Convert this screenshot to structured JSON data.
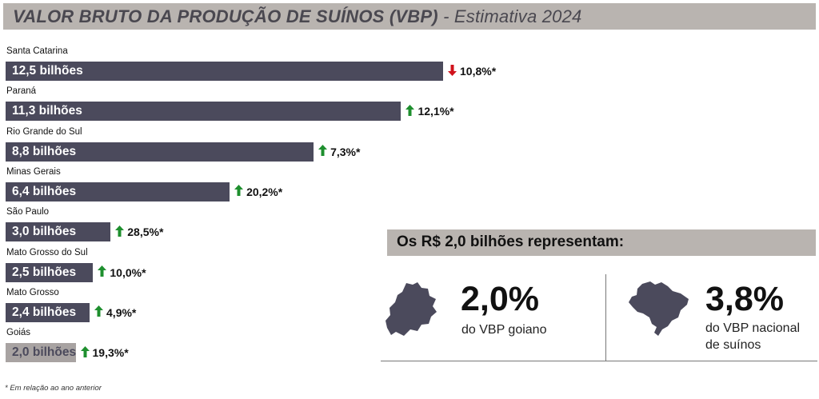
{
  "header": {
    "title": "VALOR BRUTO DA PRODUÇÃO DE SUÍNOS (VBP)",
    "subtitle": "- Estimativa 2024"
  },
  "chart_data": {
    "type": "bar",
    "orientation": "horizontal",
    "categories": [
      "Santa Catarina",
      "Paraná",
      "Rio Grande do Sul",
      "Minas Gerais",
      "São Paulo",
      "Mato Grosso do Sul",
      "Mato Grosso",
      "Goiás"
    ],
    "values": [
      12.5,
      11.3,
      8.8,
      6.4,
      3.0,
      2.5,
      2.4,
      2.0
    ],
    "value_labels": [
      "12,5 bilhões",
      "11,3 bilhões",
      "8,8 bilhões",
      "6,4 bilhões",
      "3,0 bilhões",
      "2,5 bilhões",
      "2,4 bilhões",
      "2,0 bilhões"
    ],
    "changes": [
      "10,8%*",
      "12,1%*",
      "7,3%*",
      "20,2%*",
      "28,5%*",
      "10,0%*",
      "4,9%*",
      "19,3%*"
    ],
    "change_directions": [
      "down",
      "up",
      "up",
      "up",
      "up",
      "up",
      "up",
      "up"
    ],
    "highlight": "Goiás",
    "colors": {
      "bar": "#4b4a5c",
      "highlight": "#a8a3a2",
      "up": "#1e8f2e",
      "down": "#d0121b"
    }
  },
  "footnote": "* Em relação ao ano anterior",
  "panel": {
    "title": "Os R$ 2,0 bilhões representam:",
    "stats": [
      {
        "icon": "goias-map-icon",
        "value": "2,0%",
        "desc_lines": [
          "do VBP goiano"
        ]
      },
      {
        "icon": "brazil-map-icon",
        "value": "3,8%",
        "desc_lines": [
          "do VBP nacional",
          "de suínos"
        ]
      }
    ]
  }
}
